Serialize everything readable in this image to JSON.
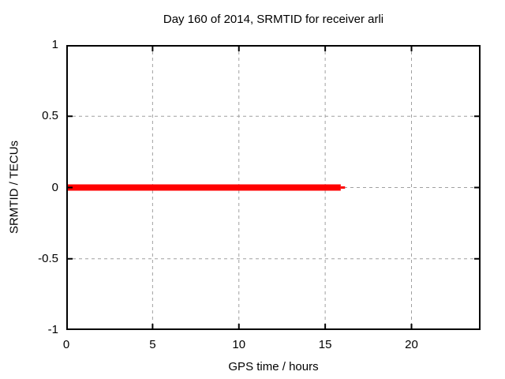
{
  "colors": {
    "background": "#ffffff",
    "text": "#000000",
    "axis": "#000000",
    "grid": "#a0a0a0",
    "line": "#ff0000"
  },
  "chart_data": {
    "type": "line",
    "title": "Day 160 of 2014, SRMTID for receiver arli",
    "xlabel": "GPS time / hours",
    "ylabel": "SRMTID / TECUs",
    "xlim": [
      0,
      24
    ],
    "ylim": [
      -1,
      1
    ],
    "xticks": [
      0,
      5,
      10,
      15,
      20
    ],
    "yticks": [
      -1,
      -0.5,
      0,
      0.5,
      1
    ],
    "grid": true,
    "grid_style": "dashed",
    "legend": false,
    "tick_style": "inward-mirrored",
    "series": [
      {
        "name": "SRMTID",
        "color": "#ff0000",
        "line_width": 8,
        "x": [
          0,
          15.9
        ],
        "y": [
          0,
          0
        ]
      },
      {
        "name": "SRMTID-line-tail",
        "color": "#ff0000",
        "line_width": 3,
        "x": [
          15.9,
          16.15
        ],
        "y": [
          0,
          0
        ]
      }
    ]
  }
}
